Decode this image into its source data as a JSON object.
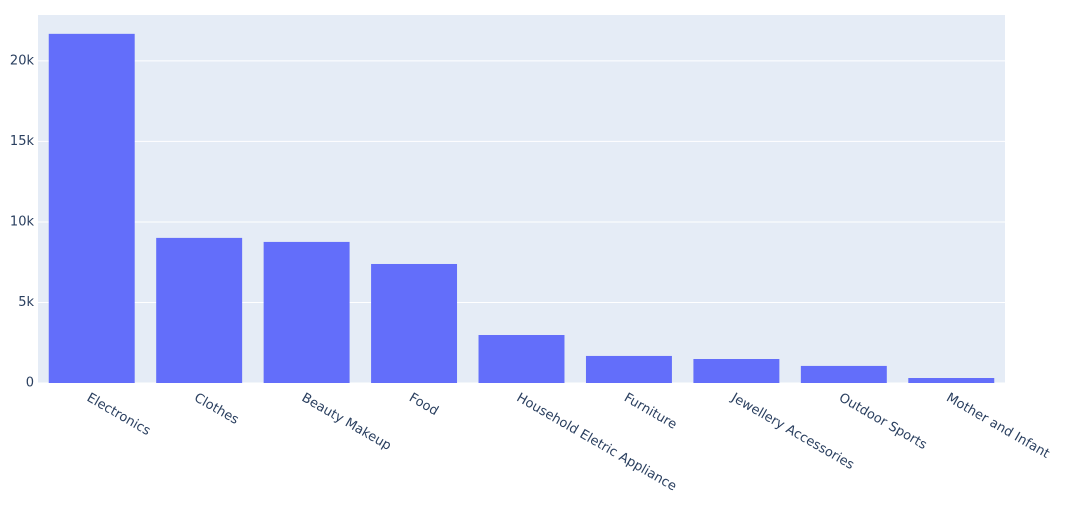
{
  "chart_data": {
    "type": "bar",
    "categories": [
      "Electronics",
      "Clothes",
      "Beauty Makeup",
      "Food",
      "Household Eletric Appliance",
      "Furniture",
      "Jewellery Accessories",
      "Outdoor Sports",
      "Mother and Infant"
    ],
    "values": [
      21680,
      9010,
      8760,
      7390,
      2980,
      1680,
      1490,
      1060,
      310
    ],
    "color": "#636efa",
    "ylim": [
      0,
      22850
    ],
    "yticks": [
      0,
      {
        "value": 5000,
        "label": "5k"
      },
      {
        "value": 10000,
        "label": "10k"
      },
      {
        "value": 15000,
        "label": "15k"
      },
      {
        "value": 20000,
        "label": "20k"
      }
    ],
    "grid": true
  }
}
